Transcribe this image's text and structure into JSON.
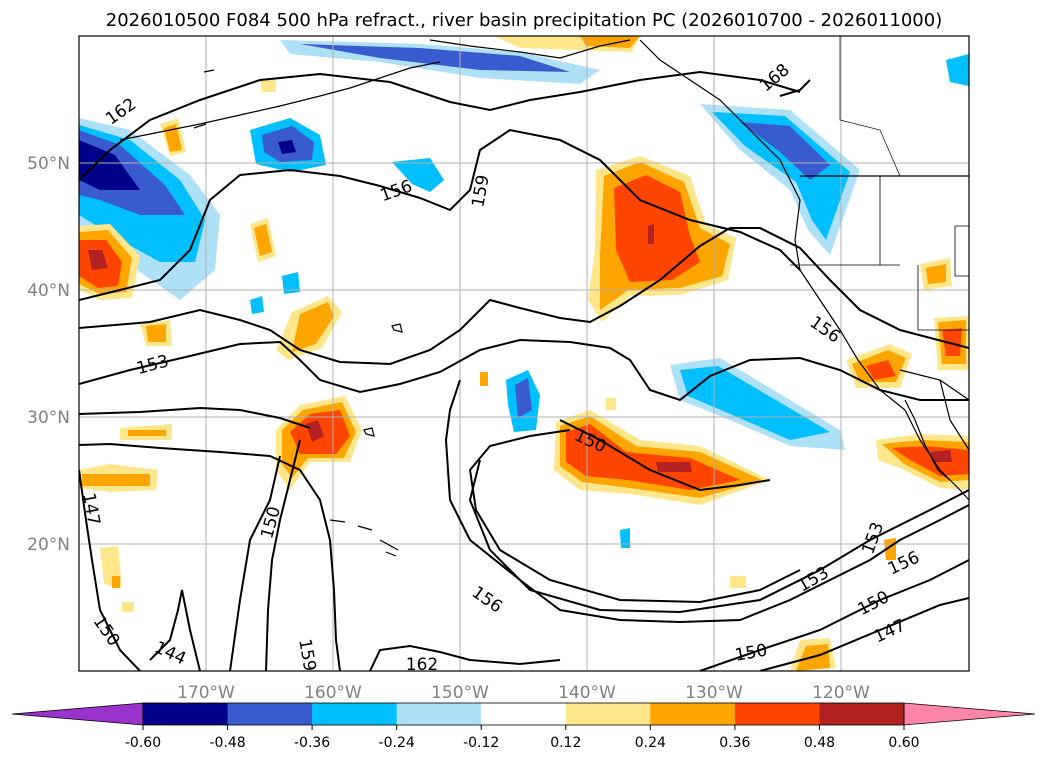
{
  "chart_data": {
    "type": "contour-map",
    "title": "2026010500 F084 500 hPa refract., river basin precipitation PC (2026010700 - 2026011000)",
    "lon_range": [
      -180,
      -110
    ],
    "lat_range": [
      10,
      60
    ],
    "x_tick_labels": [
      "170°W",
      "160°W",
      "150°W",
      "140°W",
      "130°W",
      "120°W"
    ],
    "y_tick_labels": [
      "50°N",
      "40°N",
      "30°N",
      "20°N"
    ],
    "grid": true,
    "colorbar": {
      "orientation": "horizontal",
      "extend": "both",
      "levels": [
        "-0.60",
        "-0.48",
        "-0.36",
        "-0.24",
        "-0.12",
        "0.12",
        "0.24",
        "0.36",
        "0.48",
        "0.60"
      ],
      "colors": [
        "#9933cc",
        "#00008b",
        "#3a5bd0",
        "#00bfff",
        "#aee0f8",
        "#ffffff",
        "#ffe68a",
        "#ffa500",
        "#ff4500",
        "#b22222",
        "#ff85a8"
      ]
    },
    "contour_labels": [
      "162",
      "168",
      "156",
      "159",
      "153",
      "147",
      "150",
      "144",
      "159",
      "162",
      "156",
      "150",
      "156",
      "150",
      "153",
      "156",
      "153",
      "150",
      "147"
    ],
    "colors": {
      "coast": "#000000",
      "grid": "#b0b0b0",
      "contour": "#000000"
    }
  }
}
